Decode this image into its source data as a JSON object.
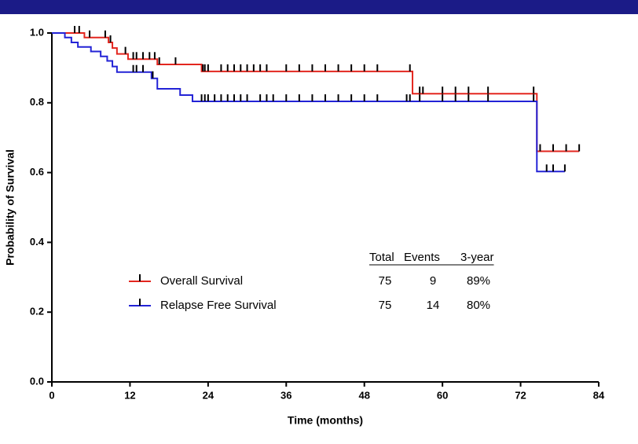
{
  "chart_data": {
    "type": "survival",
    "x_label": "Time (months)",
    "y_label": "Probability of Survival",
    "xlim": [
      0,
      84
    ],
    "xticks": [
      0,
      12,
      24,
      36,
      48,
      60,
      72,
      84
    ],
    "ylim": [
      0,
      1
    ],
    "yticks": [
      {
        "value": 0,
        "label": "0.0"
      },
      0.2,
      0.4,
      0.6,
      0.8,
      {
        "value": 1,
        "label": "1.0"
      }
    ],
    "series": [
      {
        "name": "Overall Survival",
        "color": "#e3261f",
        "x": [
          0,
          5,
          8.7,
          9.3,
          10,
          11.7,
          16.2,
          23,
          55.4,
          74.5
        ],
        "values": [
          1,
          0.987,
          0.973,
          0.957,
          0.94,
          0.925,
          0.91,
          0.89,
          0.826,
          0.661
        ],
        "censor_times": [
          3.5,
          4.2,
          5.8,
          8.2,
          9,
          11.3,
          12.5,
          13,
          14,
          15,
          15.8,
          16.5,
          19,
          23.2,
          23.5,
          24,
          26,
          27,
          28,
          29,
          30,
          31,
          32,
          33,
          36,
          38,
          40,
          42,
          44,
          46,
          48,
          50,
          55,
          56.5,
          57,
          60,
          62,
          64,
          67,
          74,
          75,
          77,
          79,
          81
        ]
      },
      {
        "name": "Relapse Free Survival",
        "color": "#2323d6",
        "x": [
          0,
          2,
          3,
          4,
          6,
          7.5,
          8.5,
          9.3,
          10,
          15.3,
          16.2,
          19.7,
          21.6,
          74.5
        ],
        "values": [
          1,
          0.987,
          0.973,
          0.96,
          0.947,
          0.933,
          0.92,
          0.904,
          0.888,
          0.87,
          0.84,
          0.822,
          0.804,
          0.603
        ],
        "censor_times": [
          12.5,
          13,
          14,
          15.5,
          23,
          23.5,
          24,
          25,
          26,
          27,
          28,
          29,
          30,
          32,
          33,
          34,
          36,
          38,
          40,
          42,
          44,
          46,
          48,
          50,
          54.5,
          55,
          56.5,
          60,
          62,
          64,
          67,
          74,
          76,
          77,
          78.8
        ]
      }
    ],
    "legend_table": {
      "header": [
        "Total",
        "Events",
        "3-year"
      ],
      "rows": [
        [
          "75",
          "9",
          "89%"
        ],
        [
          "75",
          "14",
          "80%"
        ]
      ]
    }
  }
}
